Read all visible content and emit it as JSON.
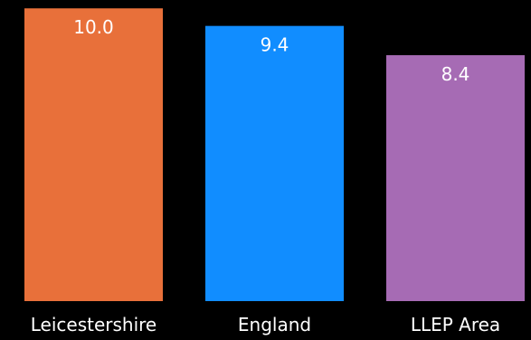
{
  "chart_data": {
    "type": "bar",
    "categories": [
      "Leicestershire",
      "England",
      "LLEP Area"
    ],
    "values": [
      10.0,
      9.4,
      8.4
    ],
    "data_labels": [
      "10.0",
      "9.4",
      "8.4"
    ],
    "colors": [
      "#E8703A",
      "#118DFF",
      "#A66BB4"
    ],
    "title": "",
    "xlabel": "",
    "ylabel": "",
    "ylim": [
      0,
      10.1
    ],
    "grid": false,
    "legend": "none"
  },
  "style": {
    "background": "#000000",
    "label_color": "#FFFFFF"
  }
}
